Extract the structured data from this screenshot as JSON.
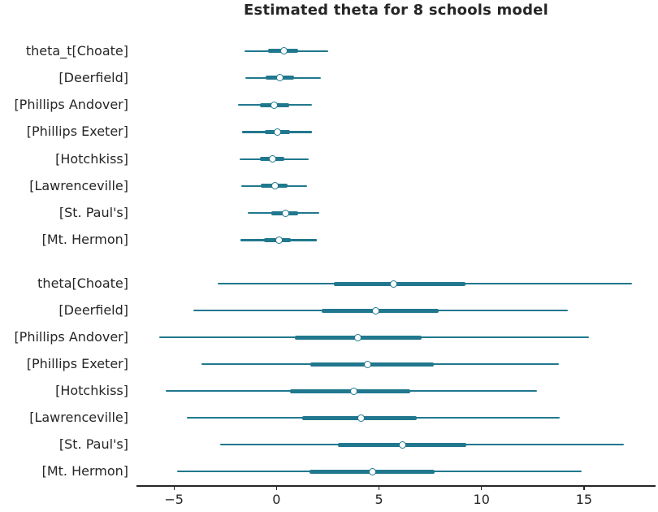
{
  "colors": {
    "series": "#21788e",
    "text": "#262626",
    "axis": "#262626",
    "background": "#ffffff"
  },
  "chart_data": {
    "type": "forest",
    "title": "Estimated theta for 8 schools model",
    "xlabel": "",
    "ylabel": "",
    "grid": false,
    "legend": null,
    "xlim": [
      -6.83,
      18.49
    ],
    "x_tick_values": [
      -5,
      0,
      5,
      10,
      15
    ],
    "x_tick_labels": [
      "−5",
      "0",
      "5",
      "10",
      "15"
    ],
    "rows": [
      {
        "group": "theta_t",
        "label": "theta_t[Choate]",
        "hdi_94": [
          -1.56,
          2.51
        ],
        "iqr": [
          -0.42,
          1.06
        ],
        "median": 0.37
      },
      {
        "group": "theta_t",
        "label": "[Deerfield]",
        "hdi_94": [
          -1.52,
          2.18
        ],
        "iqr": [
          -0.53,
          0.86
        ],
        "median": 0.16
      },
      {
        "group": "theta_t",
        "label": "[Phillips Andover]",
        "hdi_94": [
          -1.89,
          1.72
        ],
        "iqr": [
          -0.79,
          0.6
        ],
        "median": -0.11
      },
      {
        "group": "theta_t",
        "label": "[Phillips Exeter]",
        "hdi_94": [
          -1.69,
          1.72
        ],
        "iqr": [
          -0.56,
          0.66
        ],
        "median": 0.04
      },
      {
        "group": "theta_t",
        "label": "[Hotchkiss]",
        "hdi_94": [
          -1.79,
          1.59
        ],
        "iqr": [
          -0.79,
          0.4
        ],
        "median": -0.2
      },
      {
        "group": "theta_t",
        "label": "[Lawrenceville]",
        "hdi_94": [
          -1.72,
          1.5
        ],
        "iqr": [
          -0.75,
          0.56
        ],
        "median": -0.07
      },
      {
        "group": "theta_t",
        "label": "[St. Paul's]",
        "hdi_94": [
          -1.39,
          2.09
        ],
        "iqr": [
          -0.27,
          1.06
        ],
        "median": 0.46
      },
      {
        "group": "theta_t",
        "label": "[Mt. Hermon]",
        "hdi_94": [
          -1.75,
          1.98
        ],
        "iqr": [
          -0.6,
          0.7
        ],
        "median": 0.11
      },
      {
        "group": "theta",
        "label": "theta[Choate]",
        "hdi_94": [
          -2.85,
          17.33
        ],
        "iqr": [
          2.81,
          9.22
        ],
        "median": 5.73
      },
      {
        "group": "theta",
        "label": "[Deerfield]",
        "hdi_94": [
          -4.04,
          14.21
        ],
        "iqr": [
          2.22,
          7.9
        ],
        "median": 4.85
      },
      {
        "group": "theta",
        "label": "[Phillips Andover]",
        "hdi_94": [
          -5.71,
          15.25
        ],
        "iqr": [
          0.9,
          7.09
        ],
        "median": 3.97
      },
      {
        "group": "theta",
        "label": "[Phillips Exeter]",
        "hdi_94": [
          -3.66,
          13.78
        ],
        "iqr": [
          1.63,
          7.67
        ],
        "median": 4.46
      },
      {
        "group": "theta",
        "label": "[Hotchkiss]",
        "hdi_94": [
          -5.4,
          12.7
        ],
        "iqr": [
          0.66,
          6.54
        ],
        "median": 3.78
      },
      {
        "group": "theta",
        "label": "[Lawrenceville]",
        "hdi_94": [
          -4.39,
          13.81
        ],
        "iqr": [
          1.26,
          6.85
        ],
        "median": 4.14
      },
      {
        "group": "theta",
        "label": "[St. Paul's]",
        "hdi_94": [
          -2.75,
          16.93
        ],
        "iqr": [
          2.98,
          9.26
        ],
        "median": 6.16
      },
      {
        "group": "theta",
        "label": "[Mt. Hermon]",
        "hdi_94": [
          -4.83,
          14.89
        ],
        "iqr": [
          1.61,
          7.73
        ],
        "median": 4.7
      }
    ]
  }
}
